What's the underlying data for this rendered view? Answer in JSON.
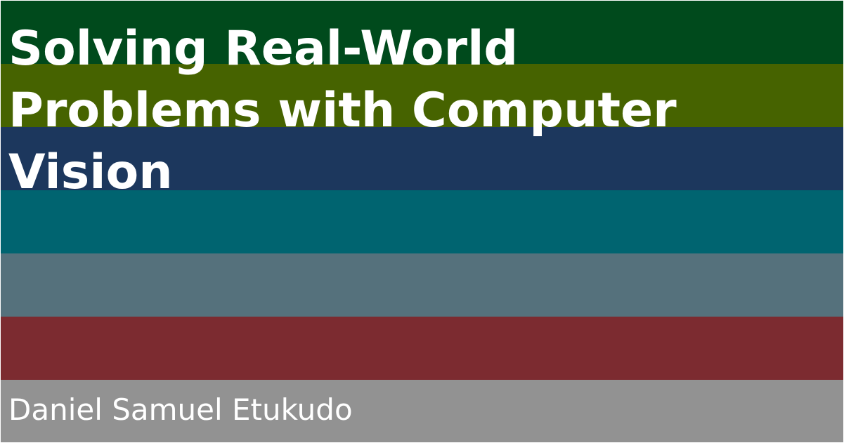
{
  "title_lines": [
    "Solving Real-World",
    "Problems with Computer",
    "Vision"
  ],
  "author": "Daniel Samuel Etukudo",
  "stripe_colors": [
    "#004a1c",
    "#466300",
    "#1c375d",
    "#006470",
    "#55717c",
    "#7c2b30",
    "#929292"
  ]
}
